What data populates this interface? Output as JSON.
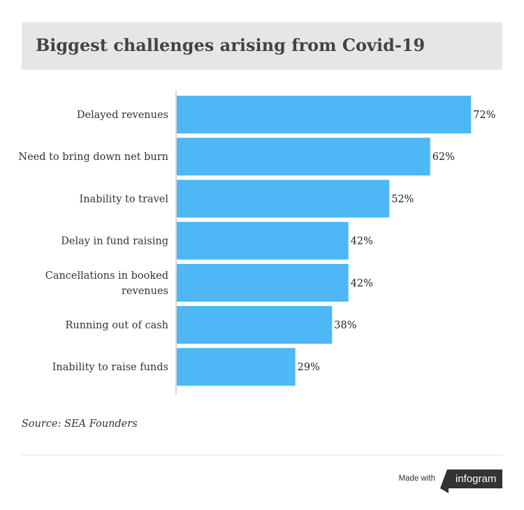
{
  "title": "Biggest challenges arising from Covid-19",
  "source": "Source: SEA Founders",
  "footer": {
    "made_with": "Made with",
    "brand": "infogram"
  },
  "colors": {
    "bar": "#4db8f5",
    "axis": "#cccccc",
    "title_bg": "#e6e6e6"
  },
  "chart_data": {
    "type": "bar",
    "orientation": "horizontal",
    "categories": [
      "Delayed revenues",
      "Need to bring down net burn",
      "Inability to travel",
      "Delay in fund raising",
      "Cancellations in booked revenues",
      "Running out of cash",
      "Inability to raise funds"
    ],
    "values": [
      72,
      62,
      52,
      42,
      42,
      38,
      29
    ],
    "value_labels": [
      "72%",
      "62%",
      "52%",
      "42%",
      "42%",
      "38%",
      "29%"
    ],
    "xlim": [
      0,
      100
    ],
    "grid": false
  }
}
